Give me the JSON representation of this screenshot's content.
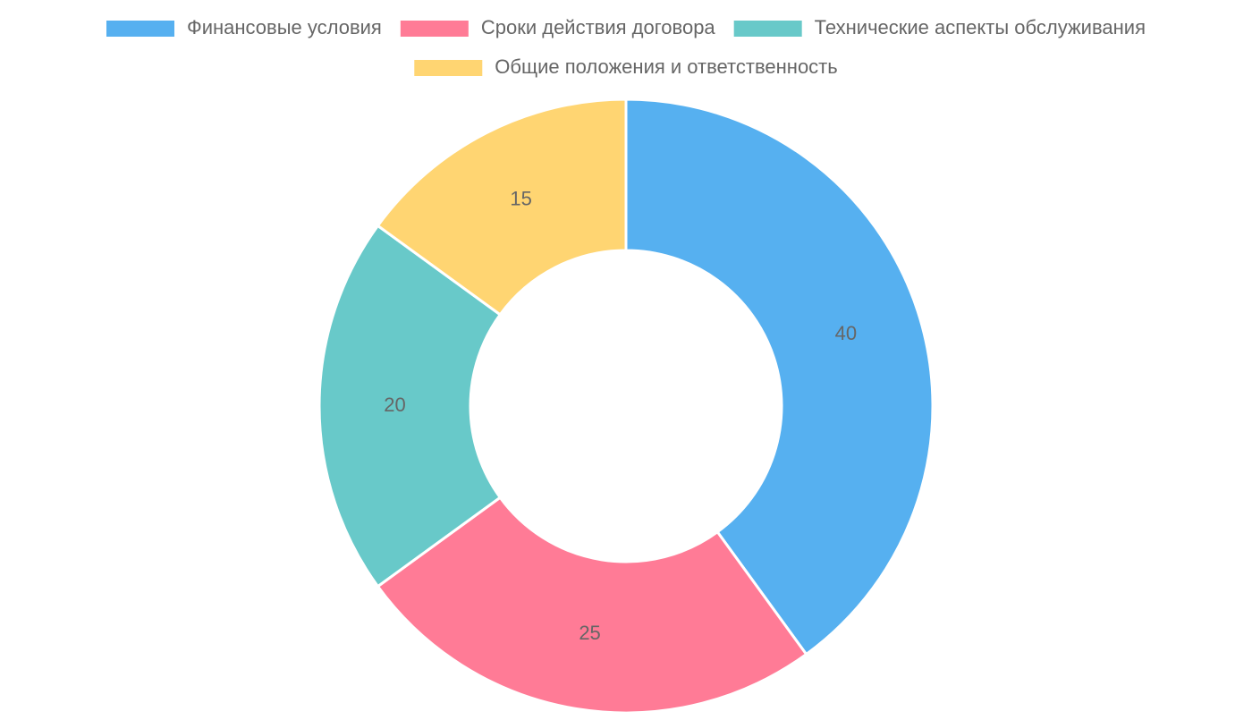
{
  "chart_data": {
    "type": "doughnut",
    "categories": [
      "Финансовые условия",
      "Сроки действия договора",
      "Технические аспекты обслуживания",
      "Общие положения и ответственность"
    ],
    "values": [
      40,
      25,
      20,
      15
    ],
    "colors": [
      "#56b0f0",
      "#ff7b96",
      "#68c9c9",
      "#ffd572"
    ],
    "legend": "top"
  }
}
